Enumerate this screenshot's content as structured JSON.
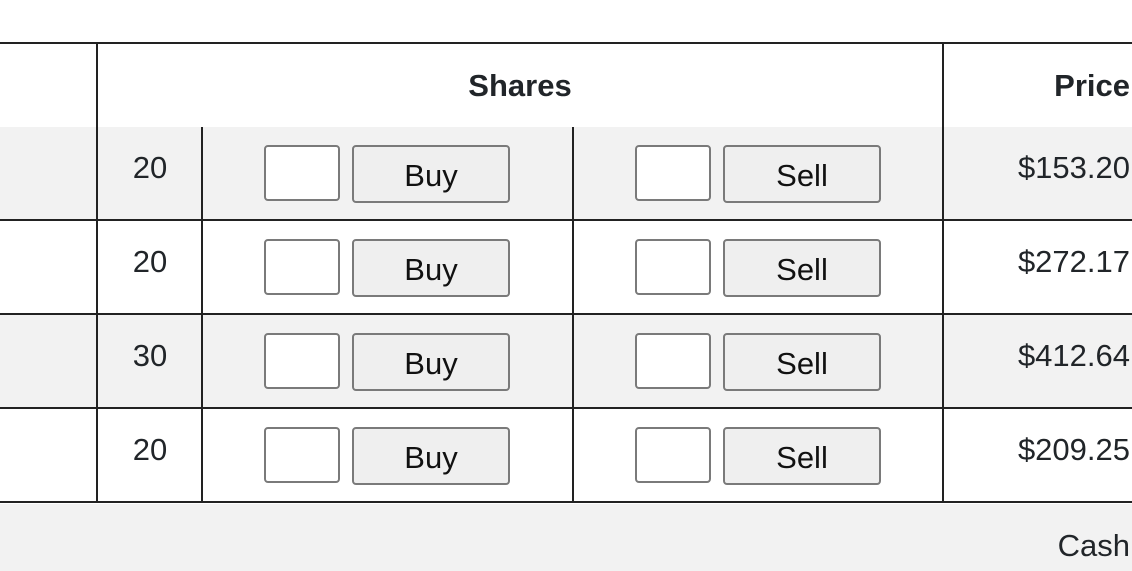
{
  "table": {
    "headers": {
      "shares": "Shares",
      "price": "Price"
    },
    "rows": [
      {
        "shares": "20",
        "buy_label": "Buy",
        "sell_label": "Sell",
        "price": "$153.20"
      },
      {
        "shares": "20",
        "buy_label": "Buy",
        "sell_label": "Sell",
        "price": "$272.17"
      },
      {
        "shares": "30",
        "buy_label": "Buy",
        "sell_label": "Sell",
        "price": "$412.64"
      },
      {
        "shares": "20",
        "buy_label": "Buy",
        "sell_label": "Sell",
        "price": "$209.25"
      }
    ],
    "footer": {
      "cash_label": "Cash"
    }
  },
  "colors": {
    "stripe": "#f2f2f2",
    "border": "#222222",
    "button_bg": "#efefef"
  }
}
